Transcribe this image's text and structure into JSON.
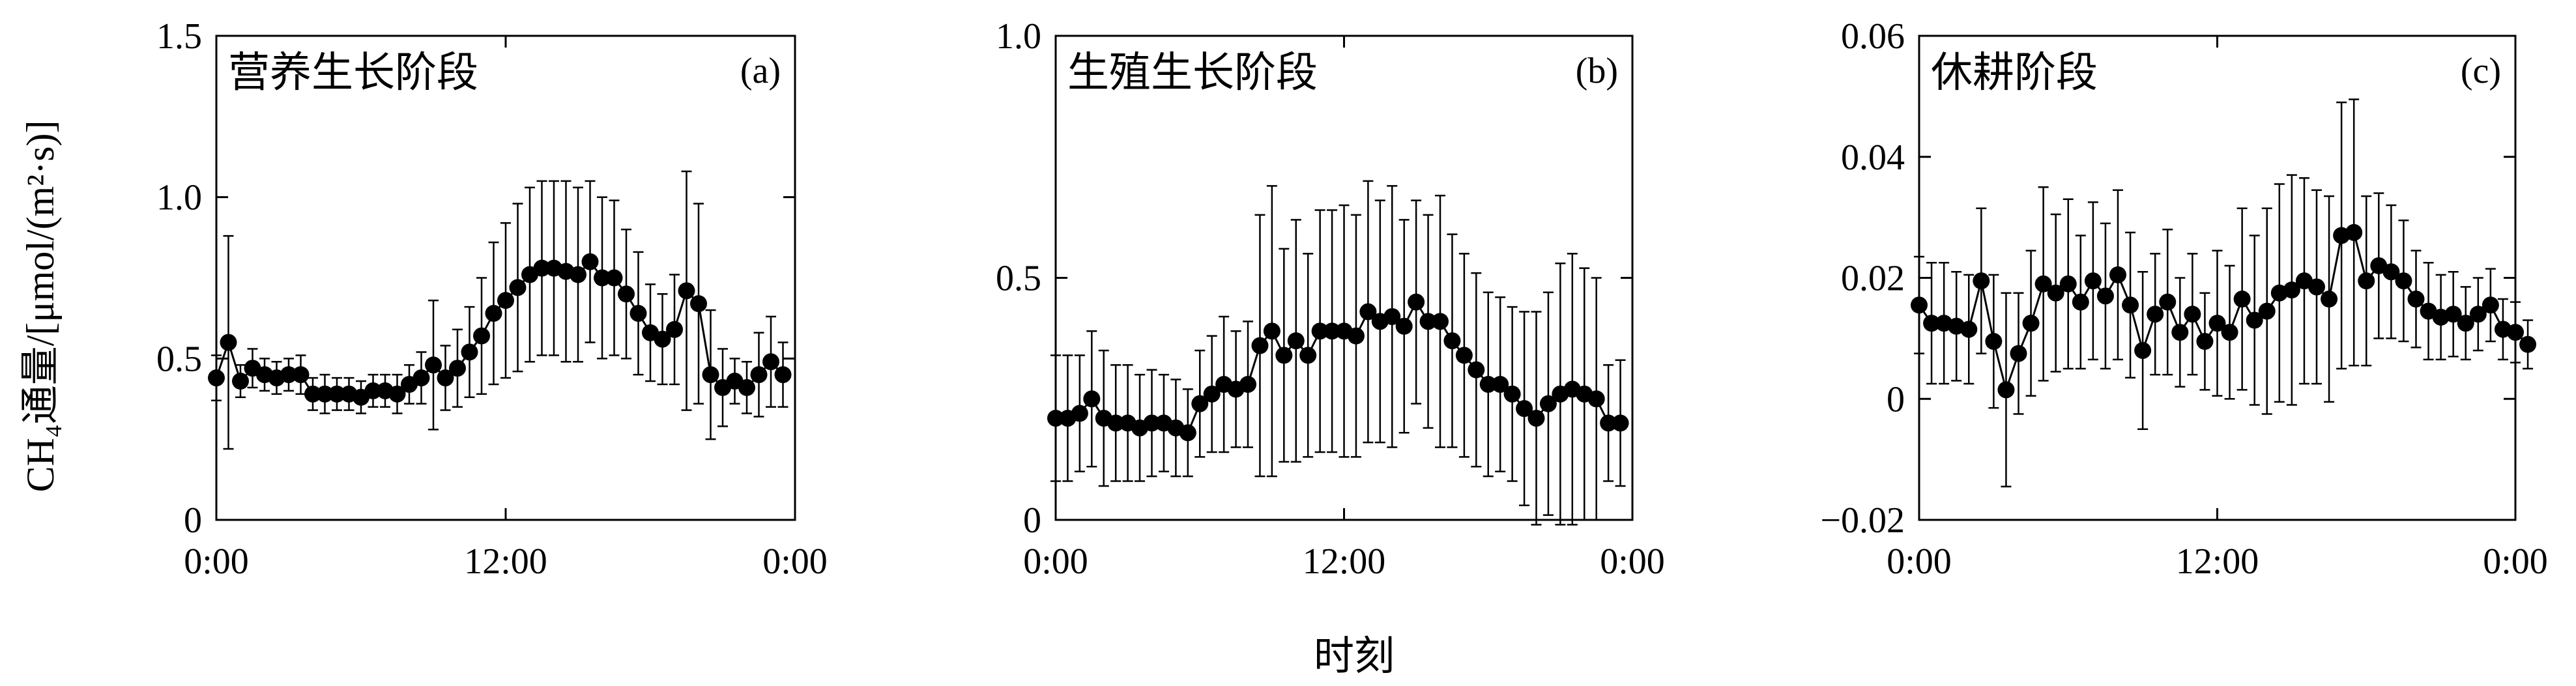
{
  "figure": {
    "ylabel": "CH₄通量/[μmol/(m²·s)]",
    "xlabel": "时刻"
  },
  "chart_data": [
    {
      "type": "line",
      "title": "营养生长阶段",
      "tag": "(a)",
      "ylim": [
        0,
        1.5
      ],
      "yticks": [
        0,
        0.5,
        1.0,
        1.5
      ],
      "ytick_labels": [
        "0",
        "0.5",
        "1.0",
        "1.5"
      ],
      "xlim": [
        0,
        24
      ],
      "xticks": [
        0,
        12,
        24
      ],
      "xtick_labels": [
        "0:00",
        "12:00",
        "0:00"
      ],
      "x_step_hours": 0.5,
      "grid": false,
      "values": [
        0.44,
        0.55,
        0.43,
        0.47,
        0.45,
        0.44,
        0.45,
        0.45,
        0.39,
        0.39,
        0.39,
        0.39,
        0.38,
        0.4,
        0.4,
        0.39,
        0.42,
        0.44,
        0.48,
        0.44,
        0.47,
        0.52,
        0.57,
        0.64,
        0.68,
        0.72,
        0.76,
        0.78,
        0.78,
        0.77,
        0.76,
        0.8,
        0.75,
        0.75,
        0.7,
        0.64,
        0.58,
        0.56,
        0.59,
        0.71,
        0.67,
        0.45,
        0.41,
        0.43,
        0.41,
        0.45,
        0.49,
        0.45
      ],
      "errors": [
        0.07,
        0.33,
        0.05,
        0.06,
        0.05,
        0.05,
        0.05,
        0.06,
        0.05,
        0.06,
        0.05,
        0.05,
        0.05,
        0.05,
        0.05,
        0.06,
        0.06,
        0.08,
        0.2,
        0.1,
        0.12,
        0.14,
        0.18,
        0.22,
        0.24,
        0.26,
        0.27,
        0.27,
        0.27,
        0.28,
        0.27,
        0.25,
        0.25,
        0.24,
        0.2,
        0.19,
        0.15,
        0.14,
        0.17,
        0.37,
        0.31,
        0.2,
        0.12,
        0.07,
        0.08,
        0.13,
        0.14,
        0.1
      ]
    },
    {
      "type": "line",
      "title": "生殖生长阶段",
      "tag": "(b)",
      "ylim": [
        0,
        1.0
      ],
      "yticks": [
        0,
        0.5,
        1.0
      ],
      "ytick_labels": [
        "0",
        "0.5",
        "1.0"
      ],
      "xlim": [
        0,
        24
      ],
      "xticks": [
        0,
        12,
        24
      ],
      "xtick_labels": [
        "0:00",
        "12:00",
        "0:00"
      ],
      "x_step_hours": 0.5,
      "grid": false,
      "values": [
        0.21,
        0.21,
        0.22,
        0.25,
        0.21,
        0.2,
        0.2,
        0.19,
        0.2,
        0.2,
        0.19,
        0.18,
        0.24,
        0.26,
        0.28,
        0.27,
        0.28,
        0.36,
        0.39,
        0.34,
        0.37,
        0.34,
        0.39,
        0.39,
        0.39,
        0.38,
        0.43,
        0.41,
        0.42,
        0.4,
        0.45,
        0.41,
        0.41,
        0.37,
        0.34,
        0.31,
        0.28,
        0.28,
        0.26,
        0.23,
        0.21,
        0.24,
        0.26,
        0.27,
        0.26,
        0.25,
        0.2,
        0.2
      ],
      "errors": [
        0.13,
        0.13,
        0.12,
        0.14,
        0.14,
        0.12,
        0.12,
        0.11,
        0.11,
        0.1,
        0.1,
        0.09,
        0.11,
        0.12,
        0.14,
        0.12,
        0.13,
        0.27,
        0.3,
        0.22,
        0.25,
        0.21,
        0.25,
        0.25,
        0.26,
        0.25,
        0.27,
        0.25,
        0.27,
        0.22,
        0.21,
        0.22,
        0.26,
        0.22,
        0.21,
        0.2,
        0.19,
        0.18,
        0.18,
        0.2,
        0.22,
        0.23,
        0.27,
        0.28,
        0.26,
        0.25,
        0.12,
        0.13
      ]
    },
    {
      "type": "line",
      "title": "休耕阶段",
      "tag": "(c)",
      "ylim": [
        -0.02,
        0.06
      ],
      "yticks": [
        -0.02,
        0,
        0.02,
        0.04,
        0.06
      ],
      "ytick_labels": [
        "−0.02",
        "0",
        "0.02",
        "0.04",
        "0.06"
      ],
      "xlim": [
        0,
        24
      ],
      "xticks": [
        0,
        12,
        24
      ],
      "xtick_labels": [
        "0:00",
        "12:00",
        "0:00"
      ],
      "x_step_hours": 0.5,
      "grid": false,
      "values": [
        0.0155,
        0.0125,
        0.0125,
        0.012,
        0.0115,
        0.0195,
        0.0095,
        0.0015,
        0.0075,
        0.0125,
        0.019,
        0.0175,
        0.019,
        0.016,
        0.0195,
        0.017,
        0.0205,
        0.0155,
        0.008,
        0.014,
        0.016,
        0.011,
        0.014,
        0.0095,
        0.0125,
        0.011,
        0.0165,
        0.013,
        0.0145,
        0.0175,
        0.018,
        0.0195,
        0.0185,
        0.0165,
        0.027,
        0.0275,
        0.0195,
        0.022,
        0.021,
        0.0195,
        0.0165,
        0.0145,
        0.0135,
        0.014,
        0.0125,
        0.014,
        0.0155,
        0.0115,
        0.011,
        0.009
      ],
      "errors": [
        0.008,
        0.01,
        0.01,
        0.009,
        0.009,
        0.012,
        0.011,
        0.016,
        0.01,
        0.012,
        0.016,
        0.013,
        0.014,
        0.011,
        0.013,
        0.012,
        0.014,
        0.012,
        0.013,
        0.01,
        0.012,
        0.009,
        0.01,
        0.008,
        0.012,
        0.011,
        0.015,
        0.014,
        0.017,
        0.018,
        0.019,
        0.017,
        0.016,
        0.017,
        0.022,
        0.022,
        0.014,
        0.012,
        0.011,
        0.01,
        0.008,
        0.008,
        0.007,
        0.007,
        0.006,
        0.006,
        0.006,
        0.005,
        0.005,
        0.004
      ]
    }
  ]
}
